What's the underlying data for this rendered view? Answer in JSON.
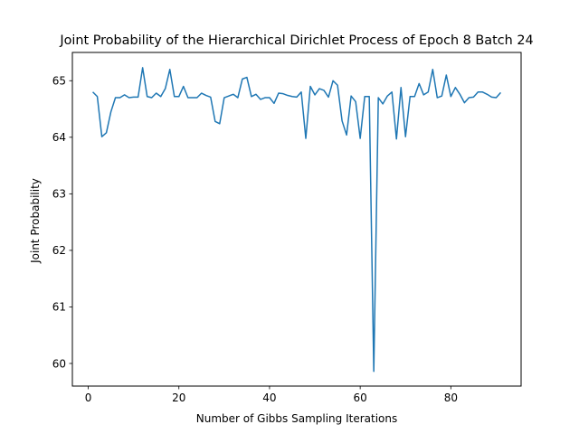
{
  "chart_data": {
    "type": "line",
    "title": "Joint Probability of the Hierarchical Dirichlet Process of Epoch 8 Batch 24",
    "xlabel": "Number of Gibbs Sampling Iterations",
    "ylabel": "Joint Probability",
    "xlim": [
      -3.5,
      95.5
    ],
    "ylim": [
      59.6,
      65.5
    ],
    "xticks": [
      0,
      20,
      40,
      60,
      80
    ],
    "yticks": [
      60,
      61,
      62,
      63,
      64,
      65
    ],
    "grid": false,
    "legend": "none",
    "series": [
      {
        "color": "#1f77b4",
        "x": [
          1,
          2,
          3,
          4,
          5,
          6,
          7,
          8,
          9,
          10,
          11,
          12,
          13,
          14,
          15,
          16,
          17,
          18,
          19,
          20,
          21,
          22,
          23,
          24,
          25,
          26,
          27,
          28,
          29,
          30,
          31,
          32,
          33,
          34,
          35,
          36,
          37,
          38,
          39,
          40,
          41,
          42,
          43,
          44,
          45,
          46,
          47,
          48,
          49,
          50,
          51,
          52,
          53,
          54,
          55,
          56,
          57,
          58,
          59,
          60,
          61,
          62,
          63,
          64,
          65,
          66,
          67,
          68,
          69,
          70,
          71,
          72,
          73,
          74,
          75,
          76,
          77,
          78,
          79,
          80,
          81,
          82,
          83,
          84,
          85,
          86,
          87,
          88,
          89,
          90,
          91
        ],
        "y": [
          64.8,
          64.72,
          64.01,
          64.08,
          64.45,
          64.7,
          64.7,
          64.75,
          64.7,
          64.71,
          64.71,
          65.23,
          64.72,
          64.7,
          64.78,
          64.72,
          64.86,
          65.2,
          64.72,
          64.72,
          64.9,
          64.7,
          64.7,
          64.7,
          64.78,
          64.74,
          64.71,
          64.28,
          64.24,
          64.7,
          64.73,
          64.76,
          64.7,
          65.03,
          65.06,
          64.72,
          64.76,
          64.67,
          64.7,
          64.7,
          64.6,
          64.78,
          64.77,
          64.74,
          64.72,
          64.71,
          64.8,
          63.98,
          64.9,
          64.75,
          64.86,
          64.83,
          64.71,
          65.0,
          64.92,
          64.29,
          64.04,
          64.73,
          64.63,
          63.98,
          64.72,
          64.72,
          59.86,
          64.7,
          64.59,
          64.73,
          64.8,
          63.97,
          64.88,
          64.01,
          64.72,
          64.72,
          64.95,
          64.75,
          64.8,
          65.2,
          64.7,
          64.73,
          65.1,
          64.72,
          64.88,
          64.76,
          64.61,
          64.7,
          64.71,
          64.8,
          64.8,
          64.76,
          64.71,
          64.7,
          64.79
        ]
      }
    ]
  }
}
